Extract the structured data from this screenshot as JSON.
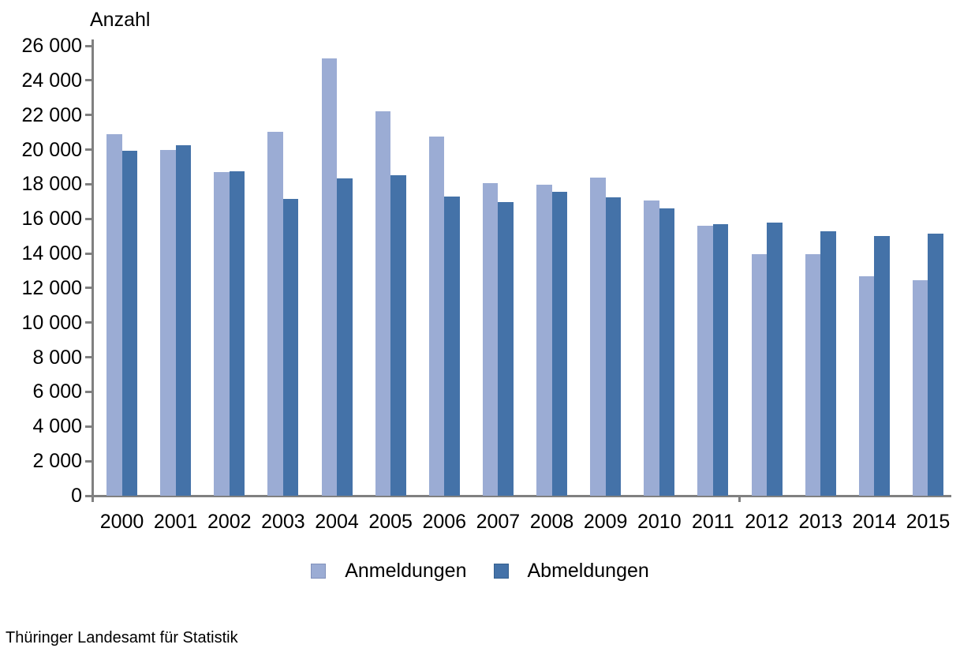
{
  "chart_data": {
    "type": "bar",
    "title": "",
    "ylabel": "Anzahl",
    "xlabel": "",
    "categories": [
      "2000",
      "2001",
      "2002",
      "2003",
      "2004",
      "2005",
      "2006",
      "2007",
      "2008",
      "2009",
      "2010",
      "2011",
      "2012",
      "2013",
      "2014",
      "2015"
    ],
    "series": [
      {
        "name": "Anmeldungen",
        "color": "#9BACD4",
        "border_color": "#8191BB",
        "values": [
          20900,
          20000,
          18700,
          21050,
          25250,
          22200,
          20750,
          18050,
          17950,
          18400,
          17050,
          15600,
          13950,
          13950,
          12700,
          12450
        ]
      },
      {
        "name": "Abmeldungen",
        "color": "#4472A8",
        "border_color": "#35608F",
        "values": [
          19950,
          20250,
          18750,
          17150,
          18350,
          18500,
          17300,
          16950,
          17550,
          17250,
          16600,
          15700,
          15800,
          15300,
          15000,
          15150
        ]
      }
    ],
    "ylim": [
      0,
      26000
    ],
    "ytick_step": 2000,
    "y_tick_labels": [
      "0",
      "2 000",
      "4 000",
      "6 000",
      "8 000",
      "10 000",
      "12 000",
      "14 000",
      "16 000",
      "18 000",
      "20 000",
      "22 000",
      "24 000",
      "26 000"
    ],
    "grid": false,
    "legend_position": "bottom",
    "axis_color": "#808080",
    "source": "Thüringer Landesamt für Statistik"
  }
}
